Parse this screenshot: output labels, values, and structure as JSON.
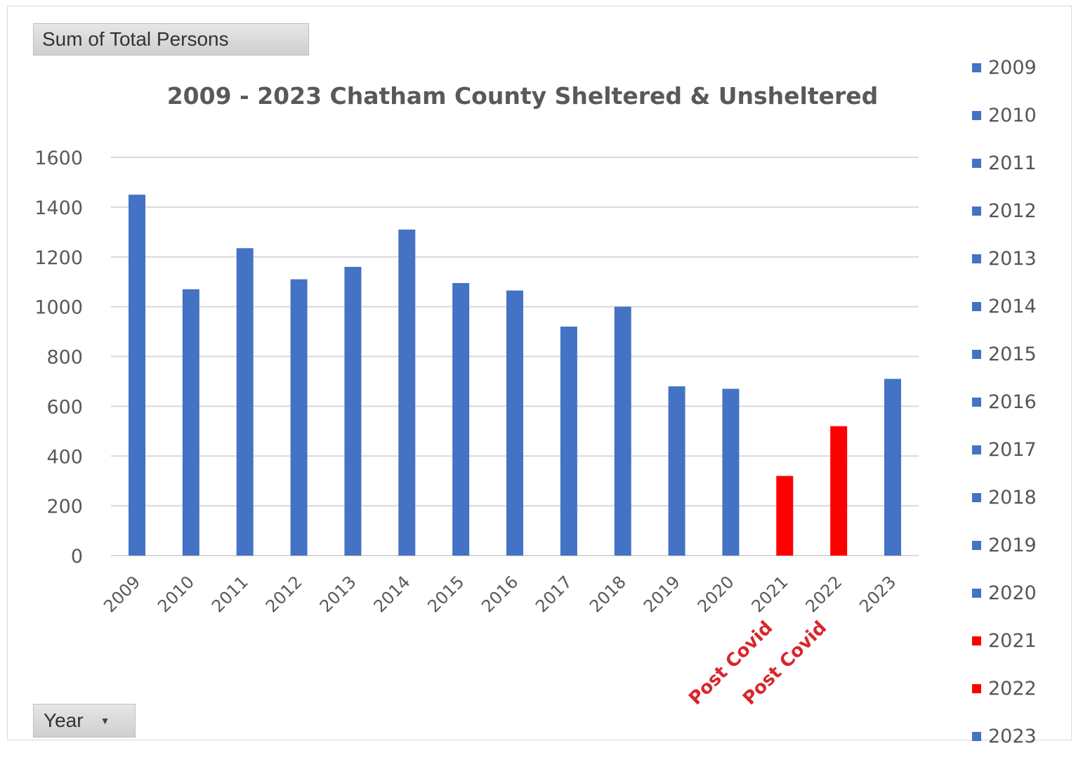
{
  "field_buttons": {
    "values_field": "Sum of Total Persons",
    "axis_field": "Year"
  },
  "colors": {
    "normal": "#4472C4",
    "post_covid": "#FF0000",
    "post_covid_label": "#D9262C",
    "grid": "#d9d9d9",
    "axis_text": "#595959"
  },
  "chart_data": {
    "type": "bar",
    "title": "2009 - 2023 Chatham County Sheltered & Unsheltered",
    "xlabel": "",
    "ylabel": "",
    "ylim": [
      0,
      1600
    ],
    "yticks": [
      0,
      200,
      400,
      600,
      800,
      1000,
      1200,
      1400,
      1600
    ],
    "grid": true,
    "legend_position": "right",
    "categories": [
      "2009",
      "2010",
      "2011",
      "2012",
      "2013",
      "2014",
      "2015",
      "2016",
      "2017",
      "2018",
      "2019",
      "2020",
      "2021",
      "2022",
      "2023"
    ],
    "values": [
      1450,
      1070,
      1235,
      1110,
      1160,
      1310,
      1095,
      1065,
      920,
      1000,
      680,
      670,
      320,
      520,
      710
    ],
    "highlight": [
      "normal",
      "normal",
      "normal",
      "normal",
      "normal",
      "normal",
      "normal",
      "normal",
      "normal",
      "normal",
      "normal",
      "normal",
      "post_covid",
      "post_covid",
      "normal"
    ],
    "annotations": [
      {
        "category": "2021",
        "text": "Post Covid"
      },
      {
        "category": "2022",
        "text": "Post Covid"
      }
    ]
  }
}
